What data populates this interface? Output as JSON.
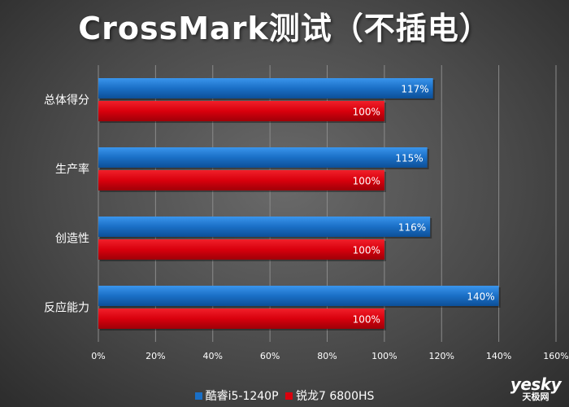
{
  "chart_data": {
    "type": "bar",
    "orientation": "horizontal",
    "title": "CrossMark测试（不插电）",
    "categories": [
      "总体得分",
      "生产率",
      "创造性",
      "反应能力"
    ],
    "series": [
      {
        "name": "酷睿i5-1240P",
        "values": [
          117,
          115,
          116,
          140
        ],
        "labels": [
          "117%",
          "115%",
          "116%",
          "140%"
        ],
        "color": "#1a6fc6"
      },
      {
        "name": "锐龙7 6800HS",
        "values": [
          100,
          100,
          100,
          100
        ],
        "labels": [
          "100%",
          "100%",
          "100%",
          "100%"
        ],
        "color": "#d9000d"
      }
    ],
    "xlim": [
      0,
      160
    ],
    "xticks": [
      "0%",
      "20%",
      "40%",
      "60%",
      "80%",
      "100%",
      "120%",
      "140%",
      "160%"
    ],
    "grid": true,
    "legend_position": "bottom"
  },
  "watermark": {
    "main": "yesky",
    "sub": "天极网"
  }
}
